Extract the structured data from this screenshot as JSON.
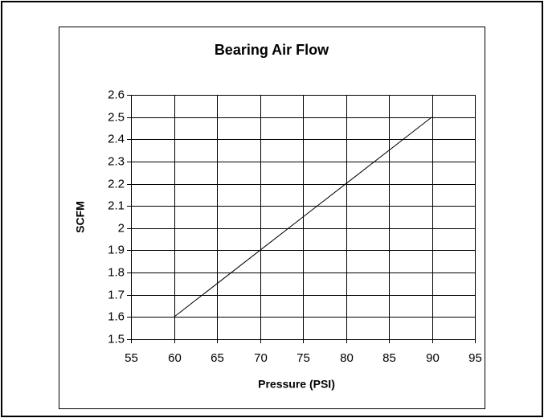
{
  "chart_data": {
    "type": "line",
    "title": "Bearing Air Flow",
    "x_label": "Pressure (PSI)",
    "y_label": "SCFM",
    "x": [
      60,
      70,
      80,
      90
    ],
    "series": [
      {
        "name": "Bearing Air Flow",
        "color": "#000000",
        "values": [
          1.6,
          1.9,
          2.2,
          2.5
        ]
      }
    ],
    "xlim": [
      55,
      95
    ],
    "xticks": [
      55,
      60,
      65,
      70,
      75,
      80,
      85,
      90,
      95
    ],
    "ylim": [
      1.5,
      2.6
    ],
    "yticks": [
      1.5,
      1.6,
      1.7,
      1.8,
      1.9,
      2,
      2.1,
      2.2,
      2.3,
      2.4,
      2.5,
      2.6
    ],
    "grid": true
  }
}
